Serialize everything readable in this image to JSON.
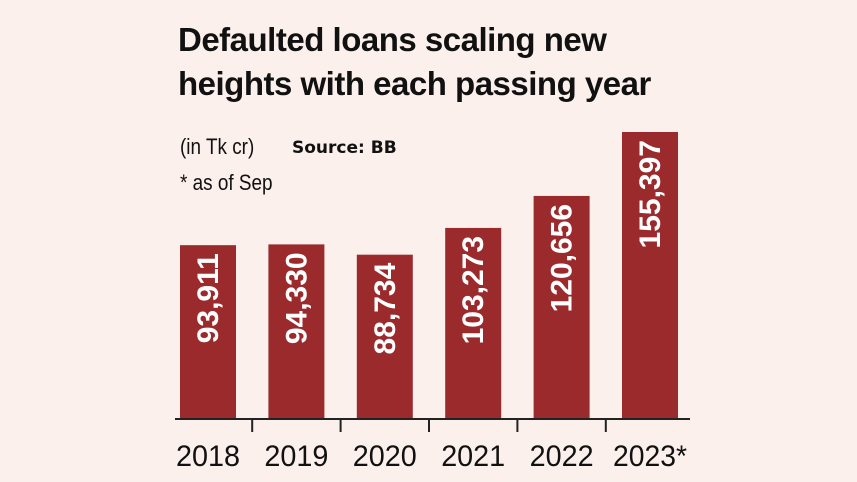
{
  "header": {
    "title_line1": "Defaulted loans scaling new",
    "title_line2": "heights with each passing year",
    "unit": "(in Tk cr)",
    "source": "Source: BB",
    "note": "* as of Sep"
  },
  "colors": {
    "background": "#fcf0ec",
    "bar": "#9b2a2d",
    "bar_label": "#ffffff",
    "axis": "#222222"
  },
  "chart_data": {
    "type": "bar",
    "title": "Defaulted loans scaling new heights with each passing year",
    "ylabel": "(in Tk cr)",
    "categories": [
      "2018",
      "2019",
      "2020",
      "2021",
      "2022",
      "2023*"
    ],
    "values": [
      93911,
      94330,
      88734,
      103273,
      120656,
      155397
    ],
    "value_labels": [
      "93,911",
      "94,330",
      "88,734",
      "103,273",
      "120,656",
      "155,397"
    ],
    "ylim": [
      0,
      155397
    ],
    "grid": false,
    "legend": "none",
    "annotations": [
      "Source: BB",
      "* as of Sep"
    ]
  }
}
